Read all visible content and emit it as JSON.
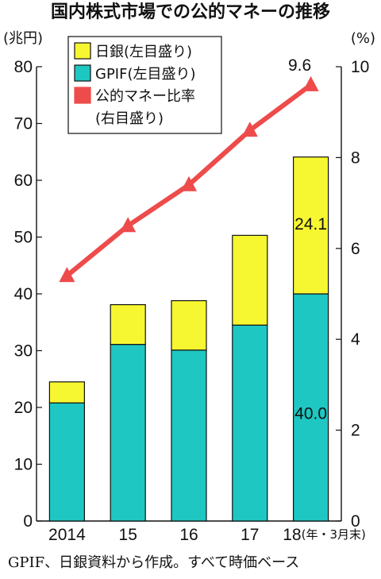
{
  "title": "国内株式市場での公的マネーの推移",
  "source_note": "GPIF、日銀資料から作成。すべて時価ベース",
  "colors": {
    "boj": "#f7f731",
    "gpif": "#1ec7c2",
    "ratio": "#ee4b4b",
    "text": "#111111"
  },
  "chart_data": {
    "type": "bar",
    "stacked": true,
    "categories": [
      "2014",
      "15",
      "16",
      "17",
      "18"
    ],
    "x_last_suffix": "(年・3月末)",
    "series": [
      {
        "name": "GPIF(左目盛り)",
        "axis": "left",
        "values": [
          20.8,
          31.1,
          30.1,
          34.5,
          40.0
        ]
      },
      {
        "name": "日銀(左目盛り)",
        "axis": "left",
        "values": [
          3.7,
          7.0,
          8.7,
          15.8,
          24.1
        ]
      },
      {
        "name": "公的マネー比率\n(右目盛り)",
        "type": "line",
        "axis": "right",
        "values": [
          5.4,
          6.5,
          7.4,
          8.6,
          9.6
        ]
      }
    ],
    "y_left": {
      "unit_label": "(兆円)",
      "ylim": [
        0,
        80
      ],
      "ticks": [
        0,
        10,
        20,
        30,
        40,
        50,
        60,
        70,
        80
      ]
    },
    "y_right": {
      "unit_label": "(%)",
      "ylim": [
        0,
        10
      ],
      "ticks": [
        0,
        2,
        4,
        6,
        8,
        10
      ]
    },
    "data_labels": [
      {
        "series": "日銀(左目盛り)",
        "index": 4,
        "text": "24.1"
      },
      {
        "series": "GPIF(左目盛り)",
        "index": 4,
        "text": "40.0"
      },
      {
        "series": "公的マネー比率\n(右目盛り)",
        "index": 4,
        "text": "9.6"
      }
    ],
    "legend": {
      "position": "top-left",
      "entries": [
        {
          "label": "日銀(左目盛り)",
          "marker": "box",
          "color_key": "boj"
        },
        {
          "label": "GPIF(左目盛り)",
          "marker": "box",
          "color_key": "gpif"
        },
        {
          "label": "公的マネー比率",
          "label2": "(右目盛り)",
          "marker": "box",
          "color_key": "ratio"
        }
      ]
    },
    "grid": false
  }
}
